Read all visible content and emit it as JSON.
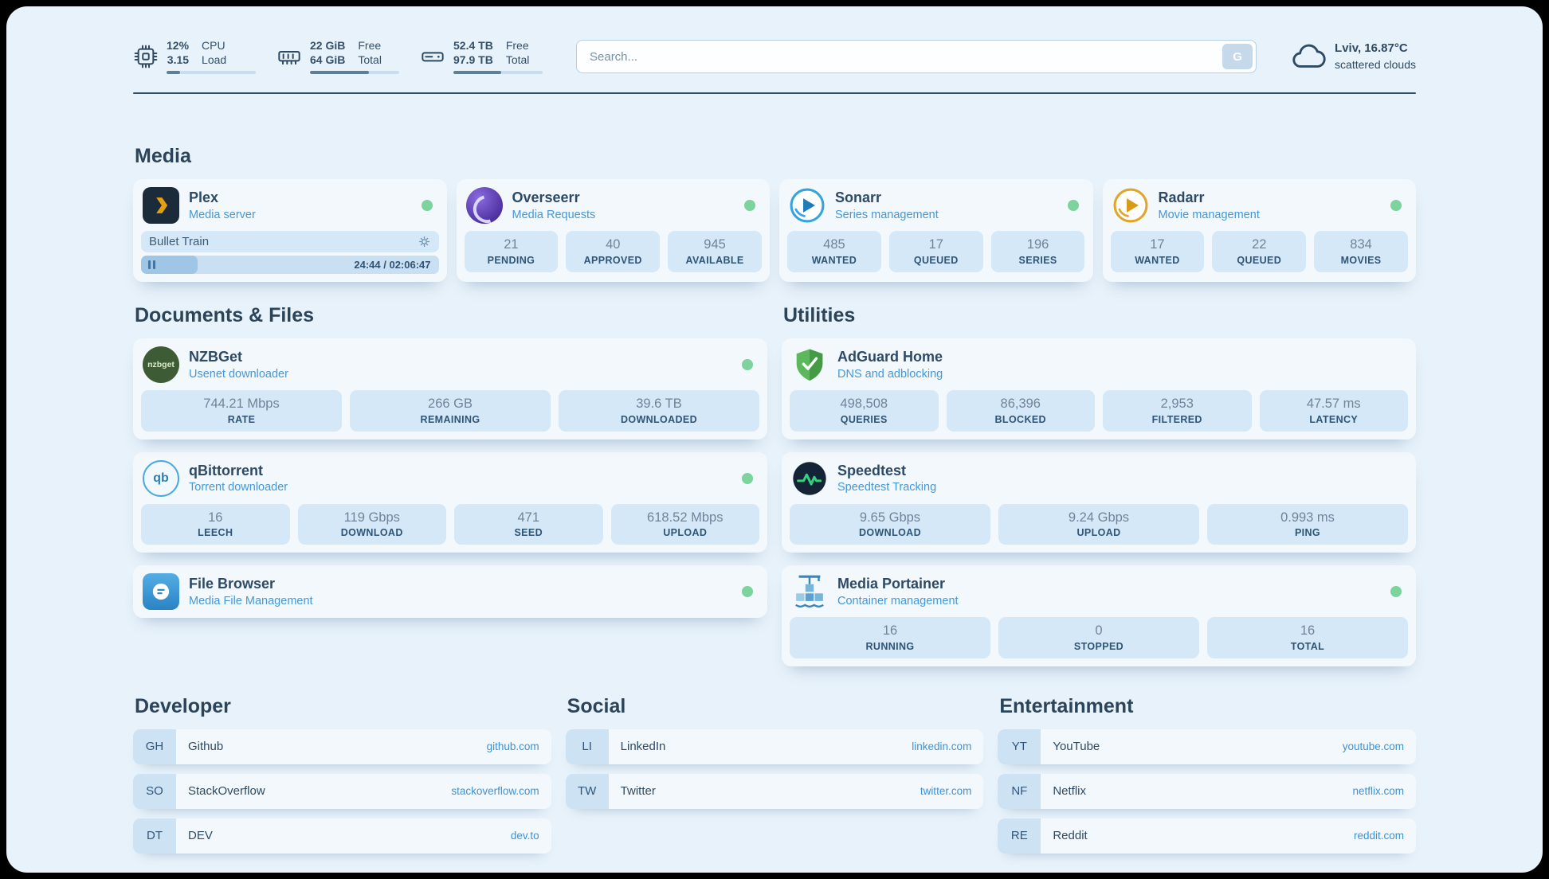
{
  "colors": {
    "background": "#e8f2fa",
    "accent_blue": "#3e92d6",
    "status_online": "#7cd39c",
    "stat_block": "#d5e8f7",
    "text_dark": "#2d4a66"
  },
  "topbar": {
    "resources": [
      {
        "icon": "cpu-icon",
        "value_top": "12%",
        "value_bottom": "3.15",
        "label_top": "CPU",
        "label_bottom": "Load",
        "progress_pct": 15
      },
      {
        "icon": "memory-icon",
        "value_top": "22 GiB",
        "value_bottom": "64 GiB",
        "label_top": "Free",
        "label_bottom": "Total",
        "progress_pct": 66
      },
      {
        "icon": "disk-icon",
        "value_top": "52.4 TB",
        "value_bottom": "97.9 TB",
        "label_top": "Free",
        "label_bottom": "Total",
        "progress_pct": 54
      }
    ],
    "search": {
      "placeholder": "Search...",
      "button_label": "G"
    },
    "weather": {
      "icon": "cloud-icon",
      "location": "Lviv, 16.87°C",
      "condition": "scattered clouds"
    }
  },
  "media": {
    "heading": "Media",
    "plex": {
      "name": "Plex",
      "subtitle": "Media server",
      "now_playing": "Bullet Train",
      "time": "24:44 / 02:06:47",
      "progress_pct": 19
    },
    "overseerr": {
      "name": "Overseerr",
      "subtitle": "Media Requests",
      "stats": [
        {
          "value": "21",
          "label": "PENDING"
        },
        {
          "value": "40",
          "label": "APPROVED"
        },
        {
          "value": "945",
          "label": "AVAILABLE"
        }
      ]
    },
    "sonarr": {
      "name": "Sonarr",
      "subtitle": "Series management",
      "stats": [
        {
          "value": "485",
          "label": "WANTED"
        },
        {
          "value": "17",
          "label": "QUEUED"
        },
        {
          "value": "196",
          "label": "SERIES"
        }
      ]
    },
    "radarr": {
      "name": "Radarr",
      "subtitle": "Movie management",
      "stats": [
        {
          "value": "17",
          "label": "WANTED"
        },
        {
          "value": "22",
          "label": "QUEUED"
        },
        {
          "value": "834",
          "label": "MOVIES"
        }
      ]
    }
  },
  "documents": {
    "heading": "Documents & Files",
    "nzbget": {
      "name": "NZBGet",
      "subtitle": "Usenet downloader",
      "icon_text": "nzbget",
      "stats": [
        {
          "value": "744.21 Mbps",
          "label": "RATE"
        },
        {
          "value": "266 GB",
          "label": "REMAINING"
        },
        {
          "value": "39.6 TB",
          "label": "DOWNLOADED"
        }
      ]
    },
    "qbittorrent": {
      "name": "qBittorrent",
      "subtitle": "Torrent downloader",
      "icon_text": "qb",
      "stats": [
        {
          "value": "16",
          "label": "LEECH"
        },
        {
          "value": "119 Gbps",
          "label": "DOWNLOAD"
        },
        {
          "value": "471",
          "label": "SEED"
        },
        {
          "value": "618.52 Mbps",
          "label": "UPLOAD"
        }
      ]
    },
    "filebrowser": {
      "name": "File Browser",
      "subtitle": "Media File Management"
    }
  },
  "utilities": {
    "heading": "Utilities",
    "adguard": {
      "name": "AdGuard Home",
      "subtitle": "DNS and adblocking",
      "stats": [
        {
          "value": "498,508",
          "label": "QUERIES"
        },
        {
          "value": "86,396",
          "label": "BLOCKED"
        },
        {
          "value": "2,953",
          "label": "FILTERED"
        },
        {
          "value": "47.57 ms",
          "label": "LATENCY"
        }
      ]
    },
    "speedtest": {
      "name": "Speedtest",
      "subtitle": "Speedtest Tracking",
      "stats": [
        {
          "value": "9.65 Gbps",
          "label": "DOWNLOAD"
        },
        {
          "value": "9.24 Gbps",
          "label": "UPLOAD"
        },
        {
          "value": "0.993 ms",
          "label": "PING"
        }
      ]
    },
    "portainer": {
      "name": "Media Portainer",
      "subtitle": "Container management",
      "stats": [
        {
          "value": "16",
          "label": "RUNNING"
        },
        {
          "value": "0",
          "label": "STOPPED"
        },
        {
          "value": "16",
          "label": "TOTAL"
        }
      ]
    }
  },
  "bookmarks": {
    "developer": {
      "heading": "Developer",
      "items": [
        {
          "abbr": "GH",
          "name": "Github",
          "url": "github.com"
        },
        {
          "abbr": "SO",
          "name": "StackOverflow",
          "url": "stackoverflow.com"
        },
        {
          "abbr": "DT",
          "name": "DEV",
          "url": "dev.to"
        }
      ]
    },
    "social": {
      "heading": "Social",
      "items": [
        {
          "abbr": "LI",
          "name": "LinkedIn",
          "url": "linkedin.com"
        },
        {
          "abbr": "TW",
          "name": "Twitter",
          "url": "twitter.com"
        }
      ]
    },
    "entertainment": {
      "heading": "Entertainment",
      "items": [
        {
          "abbr": "YT",
          "name": "YouTube",
          "url": "youtube.com"
        },
        {
          "abbr": "NF",
          "name": "Netflix",
          "url": "netflix.com"
        },
        {
          "abbr": "RE",
          "name": "Reddit",
          "url": "reddit.com"
        }
      ]
    }
  }
}
